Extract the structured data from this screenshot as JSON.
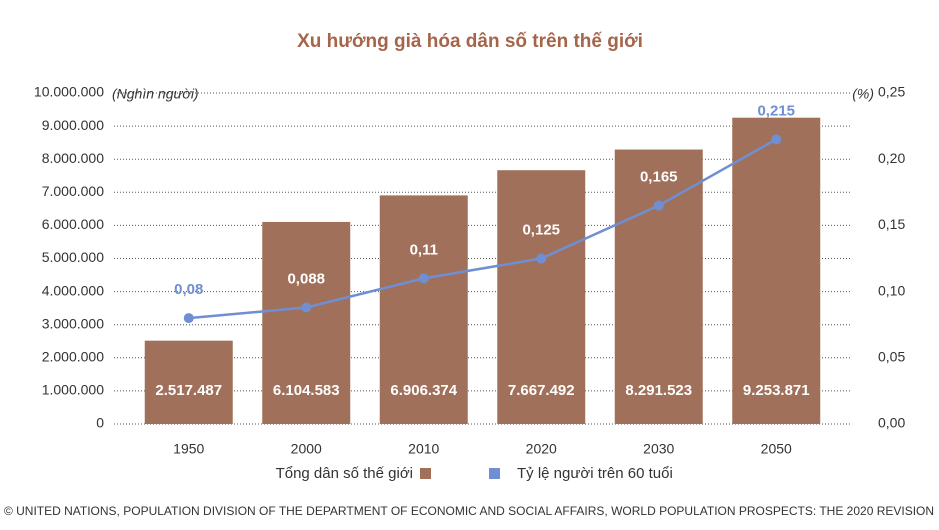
{
  "chart_data": {
    "type": "bar-line",
    "title": "Xu hướng già hóa dân số trên thế giới",
    "y_label": "(Nghìn người)",
    "y2_label": "(%)",
    "categories": [
      "1950",
      "2000",
      "2010",
      "2020",
      "2030",
      "2050"
    ],
    "series": [
      {
        "name": "Tổng dân số thế giới",
        "type": "bar",
        "color": "#a0705a",
        "values": [
          2517487,
          6104583,
          6906374,
          7667492,
          8291523,
          9253871
        ],
        "value_labels": [
          "2.517.487",
          "6.104.583",
          "6.906.374",
          "7.667.492",
          "8.291.523",
          "9.253.871"
        ]
      },
      {
        "name": "Tỷ lệ người trên 60 tuổi",
        "type": "line",
        "axis": "y2",
        "color": "#6f8fd2",
        "values": [
          0.08,
          0.088,
          0.11,
          0.125,
          0.165,
          0.215
        ],
        "value_labels": [
          "0,08",
          "0,088",
          "0,11",
          "0,125",
          "0,165",
          "0,215"
        ]
      }
    ],
    "ylim": [
      0,
      10000000
    ],
    "yticks": [
      0,
      {
        "value": 1000000,
        "label": "1.000.000"
      },
      {
        "value": 2000000,
        "label": "2.000.000"
      },
      {
        "value": 3000000,
        "label": "3.000.000"
      },
      {
        "value": 4000000,
        "label": "4.000.000"
      },
      {
        "value": 5000000,
        "label": "5.000.000"
      },
      {
        "value": 6000000,
        "label": "6.000.000"
      },
      {
        "value": 7000000,
        "label": "7.000.000"
      },
      {
        "value": 8000000,
        "label": "8.000.000"
      },
      {
        "value": 9000000,
        "label": "9.000.000"
      },
      {
        "value": 10000000,
        "label": "10.000.000"
      }
    ],
    "y2lim": [
      0,
      0.25
    ],
    "y2ticks": [
      {
        "value": 0,
        "label": "0,00"
      },
      {
        "value": 0.05,
        "label": "0,05"
      },
      {
        "value": 0.1,
        "label": "0,10"
      },
      {
        "value": 0.15,
        "label": "0,15"
      },
      {
        "value": 0.2,
        "label": "0,20"
      },
      {
        "value": 0.25,
        "label": "0,25"
      }
    ],
    "grid": true,
    "legend": "bottom",
    "source": "© UNITED NATIONS, POPULATION DIVISION OF THE DEPARTMENT OF ECONOMIC AND SOCIAL AFFAIRS, WORLD POPULATION PROSPECTS: THE 2020 REVISION"
  }
}
